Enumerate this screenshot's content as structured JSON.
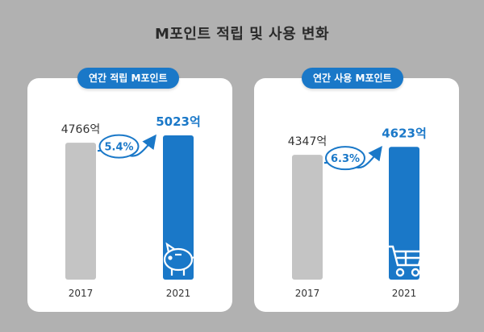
{
  "page": {
    "title": "M포인트 적립 및 사용 변화"
  },
  "colors": {
    "accent": "#1a78c8",
    "bar_old": "#c4c4c4",
    "background": "#b1b1b1",
    "panel": "#ffffff"
  },
  "chart_data": [
    {
      "type": "bar",
      "title": "연간 적립 M포인트",
      "categories": [
        "2017",
        "2021"
      ],
      "values": [
        4766,
        5023
      ],
      "value_labels": [
        "4766억",
        "5023억"
      ],
      "unit": "억",
      "growth": "5.4%",
      "icon": "piggy-bank-icon",
      "ylim": [
        0,
        5200
      ]
    },
    {
      "type": "bar",
      "title": "연간 사용 M포인트",
      "categories": [
        "2017",
        "2021"
      ],
      "values": [
        4347,
        4623
      ],
      "value_labels": [
        "4347억",
        "4623억"
      ],
      "unit": "억",
      "growth": "6.3%",
      "icon": "shopping-cart-icon",
      "ylim": [
        0,
        5200
      ]
    }
  ]
}
